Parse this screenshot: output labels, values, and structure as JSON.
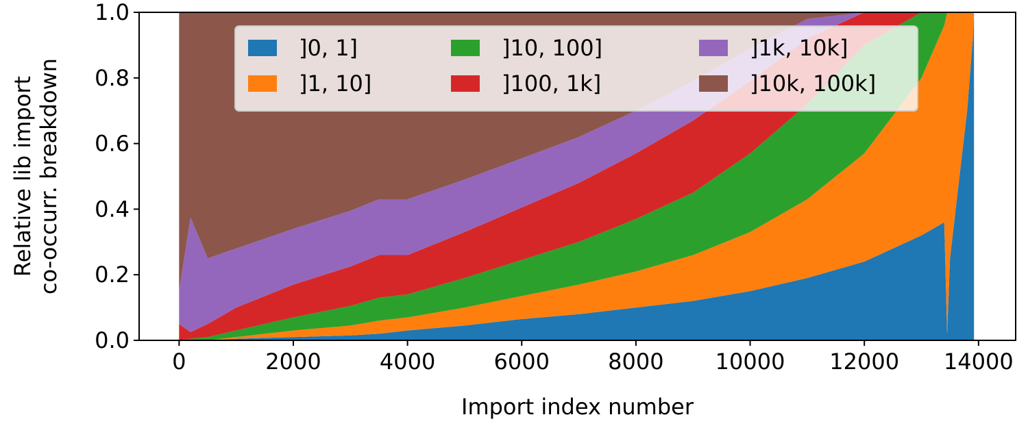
{
  "chart_data": {
    "type": "area",
    "stacked": true,
    "normalized": true,
    "title": "",
    "xlabel": "Import index number",
    "ylabel_lines": [
      "Relative lib import",
      "co-occurr. breakdown"
    ],
    "xlim": [
      -700,
      14650
    ],
    "ylim": [
      0,
      1
    ],
    "xticks": [
      0,
      2000,
      4000,
      6000,
      8000,
      10000,
      12000,
      14000
    ],
    "yticks": [
      0.0,
      0.2,
      0.4,
      0.6,
      0.8,
      1.0
    ],
    "xtick_labels": [
      "0",
      "2000",
      "4000",
      "6000",
      "8000",
      "10000",
      "12000",
      "14000"
    ],
    "ytick_labels": [
      "0.0",
      "0.2",
      "0.4",
      "0.6",
      "0.8",
      "1.0"
    ],
    "grid": false,
    "legend": {
      "placement": "top-center",
      "columns": 3
    },
    "x": [
      0,
      200,
      500,
      1000,
      2000,
      3000,
      3500,
      4000,
      5000,
      6000,
      7000,
      8000,
      9000,
      10000,
      11000,
      12000,
      13000,
      13400,
      13450,
      13500,
      13600,
      13700,
      13800,
      13900,
      13920
    ],
    "series": [
      {
        "name": "]0, 1]",
        "color": "#1f77b4",
        "values": [
          0.0,
          0.0,
          0.0,
          0.005,
          0.01,
          0.015,
          0.02,
          0.03,
          0.045,
          0.065,
          0.08,
          0.1,
          0.12,
          0.15,
          0.19,
          0.24,
          0.32,
          0.36,
          0.02,
          0.25,
          0.4,
          0.55,
          0.7,
          0.92,
          1.0
        ]
      },
      {
        "name": "]1, 10]",
        "color": "#ff7f0e",
        "values": [
          0.0,
          0.0,
          0.0,
          0.005,
          0.02,
          0.03,
          0.04,
          0.04,
          0.055,
          0.07,
          0.09,
          0.11,
          0.14,
          0.18,
          0.24,
          0.33,
          0.48,
          0.6,
          0.98,
          0.75,
          0.6,
          0.45,
          0.3,
          0.08,
          0.0
        ]
      },
      {
        "name": "]10, 100]",
        "color": "#2ca02c",
        "values": [
          0.0,
          0.005,
          0.01,
          0.02,
          0.04,
          0.06,
          0.07,
          0.07,
          0.09,
          0.11,
          0.13,
          0.16,
          0.19,
          0.24,
          0.29,
          0.33,
          0.2,
          0.04,
          0.0,
          0.0,
          0.0,
          0.0,
          0.0,
          0.0,
          0.0
        ]
      },
      {
        "name": "]100, 1k]",
        "color": "#d62728",
        "values": [
          0.05,
          0.02,
          0.04,
          0.07,
          0.1,
          0.12,
          0.13,
          0.12,
          0.14,
          0.16,
          0.18,
          0.2,
          0.22,
          0.22,
          0.2,
          0.1,
          0.0,
          0.0,
          0.0,
          0.0,
          0.0,
          0.0,
          0.0,
          0.0,
          0.0
        ]
      },
      {
        "name": "]1k, 10k]",
        "color": "#9467bd",
        "values": [
          0.1,
          0.35,
          0.2,
          0.18,
          0.17,
          0.17,
          0.17,
          0.17,
          0.16,
          0.15,
          0.14,
          0.13,
          0.12,
          0.1,
          0.06,
          0.0,
          0.0,
          0.0,
          0.0,
          0.0,
          0.0,
          0.0,
          0.0,
          0.0,
          0.0
        ]
      },
      {
        "name": "]10k, 100k]",
        "color": "#8c564b",
        "values": [
          0.85,
          0.625,
          0.75,
          0.72,
          0.66,
          0.605,
          0.57,
          0.57,
          0.51,
          0.445,
          0.38,
          0.3,
          0.21,
          0.11,
          0.02,
          0.0,
          0.0,
          0.0,
          0.0,
          0.0,
          0.0,
          0.0,
          0.0,
          0.0,
          0.0
        ]
      }
    ]
  }
}
